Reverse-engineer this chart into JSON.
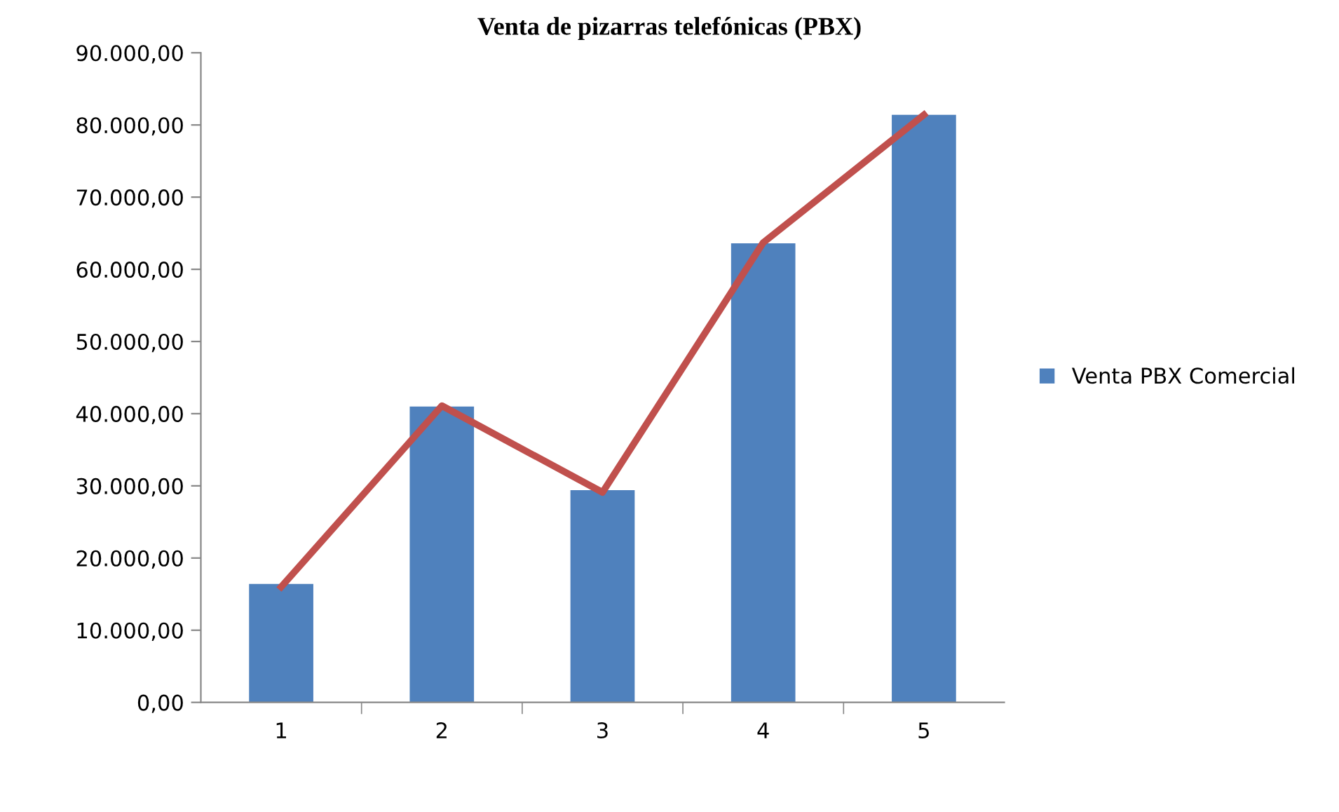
{
  "chart_data": {
    "type": "bar",
    "title": "Venta de pizarras telefónicas (PBX)",
    "categories": [
      "1",
      "2",
      "3",
      "4",
      "5"
    ],
    "series": [
      {
        "name": "Venta PBX Comercial",
        "color": "#4f81bd",
        "values": [
          16400,
          41000,
          29400,
          63600,
          81400
        ]
      },
      {
        "type": "line",
        "color": "#c0504d",
        "values": [
          16000,
          41100,
          29100,
          63700,
          81400
        ]
      }
    ],
    "ylim": [
      0,
      90000
    ],
    "yticks": [
      {
        "value": 0,
        "label": "0,00"
      },
      {
        "value": 10000,
        "label": "10.000,00"
      },
      {
        "value": 20000,
        "label": "20.000,00"
      },
      {
        "value": 30000,
        "label": "30.000,00"
      },
      {
        "value": 40000,
        "label": "40.000,00"
      },
      {
        "value": 50000,
        "label": "50.000,00"
      },
      {
        "value": 60000,
        "label": "60.000,00"
      },
      {
        "value": 70000,
        "label": "70.000,00"
      },
      {
        "value": 80000,
        "label": "80.000,00"
      },
      {
        "value": 90000,
        "label": "90.000,00"
      }
    ],
    "grid": false,
    "legend": "right",
    "marker": "none",
    "line_style": "solid"
  }
}
